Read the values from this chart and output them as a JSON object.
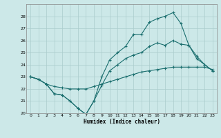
{
  "title": "",
  "xlabel": "Humidex (Indice chaleur)",
  "bg_color": "#cce8e8",
  "grid_color": "#aacccc",
  "line_color": "#1a6e6e",
  "ylim": [
    20,
    29
  ],
  "xlim": [
    -0.5,
    23.5
  ],
  "yticks": [
    20,
    21,
    22,
    23,
    24,
    25,
    26,
    27,
    28
  ],
  "xticks": [
    0,
    1,
    2,
    3,
    4,
    5,
    6,
    7,
    8,
    9,
    10,
    11,
    12,
    13,
    14,
    15,
    16,
    17,
    18,
    19,
    20,
    21,
    22,
    23
  ],
  "series": [
    [
      23.0,
      22.8,
      22.4,
      22.2,
      22.1,
      22.0,
      22.0,
      22.0,
      22.2,
      22.4,
      22.6,
      22.8,
      23.0,
      23.2,
      23.4,
      23.5,
      23.6,
      23.7,
      23.8,
      23.8,
      23.8,
      23.8,
      23.8,
      23.6
    ],
    [
      23.0,
      22.8,
      22.4,
      21.6,
      21.5,
      21.0,
      20.4,
      19.9,
      21.0,
      22.3,
      23.5,
      24.0,
      24.5,
      24.8,
      25.0,
      25.5,
      25.8,
      25.6,
      26.0,
      25.7,
      25.6,
      24.5,
      24.0,
      23.5
    ],
    [
      23.0,
      22.8,
      22.4,
      21.6,
      21.5,
      21.0,
      20.4,
      19.9,
      21.0,
      23.0,
      24.4,
      25.0,
      25.5,
      26.5,
      26.5,
      27.5,
      27.8,
      28.0,
      28.3,
      27.4,
      25.6,
      24.7,
      24.0,
      23.5
    ]
  ]
}
